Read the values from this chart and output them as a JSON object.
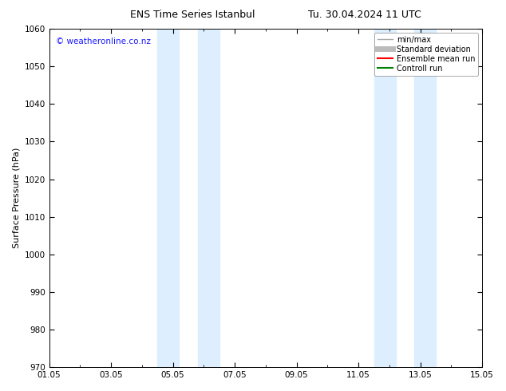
{
  "title_left": "ENS Time Series Istanbul",
  "title_right": "Tu. 30.04.2024 11 UTC",
  "ylabel": "Surface Pressure (hPa)",
  "ylim": [
    970,
    1060
  ],
  "yticks": [
    970,
    980,
    990,
    1000,
    1010,
    1020,
    1030,
    1040,
    1050,
    1060
  ],
  "xlim_start": 0,
  "xlim_end": 14,
  "xtick_positions": [
    0,
    2,
    4,
    6,
    8,
    10,
    12,
    14
  ],
  "xtick_labels": [
    "01.05",
    "03.05",
    "05.05",
    "07.05",
    "09.05",
    "11.05",
    "13.05",
    "15.05"
  ],
  "shaded_bands": [
    {
      "xstart": 3.5,
      "xend": 4.2
    },
    {
      "xstart": 4.8,
      "xend": 5.5
    },
    {
      "xstart": 10.5,
      "xend": 11.2
    },
    {
      "xstart": 11.8,
      "xend": 12.5
    }
  ],
  "shade_color": "#ddeeff",
  "watermark_text": "© weatheronline.co.nz",
  "watermark_color": "#1a1aff",
  "legend_items": [
    {
      "label": "min/max",
      "color": "#aaaaaa",
      "lw": 1.0
    },
    {
      "label": "Standard deviation",
      "color": "#bbbbbb",
      "lw": 5
    },
    {
      "label": "Ensemble mean run",
      "color": "#ff0000",
      "lw": 1.5
    },
    {
      "label": "Controll run",
      "color": "#008000",
      "lw": 1.5
    }
  ],
  "bg_color": "#ffffff",
  "title_fontsize": 9,
  "axis_label_fontsize": 8,
  "tick_fontsize": 7.5,
  "watermark_fontsize": 7.5
}
